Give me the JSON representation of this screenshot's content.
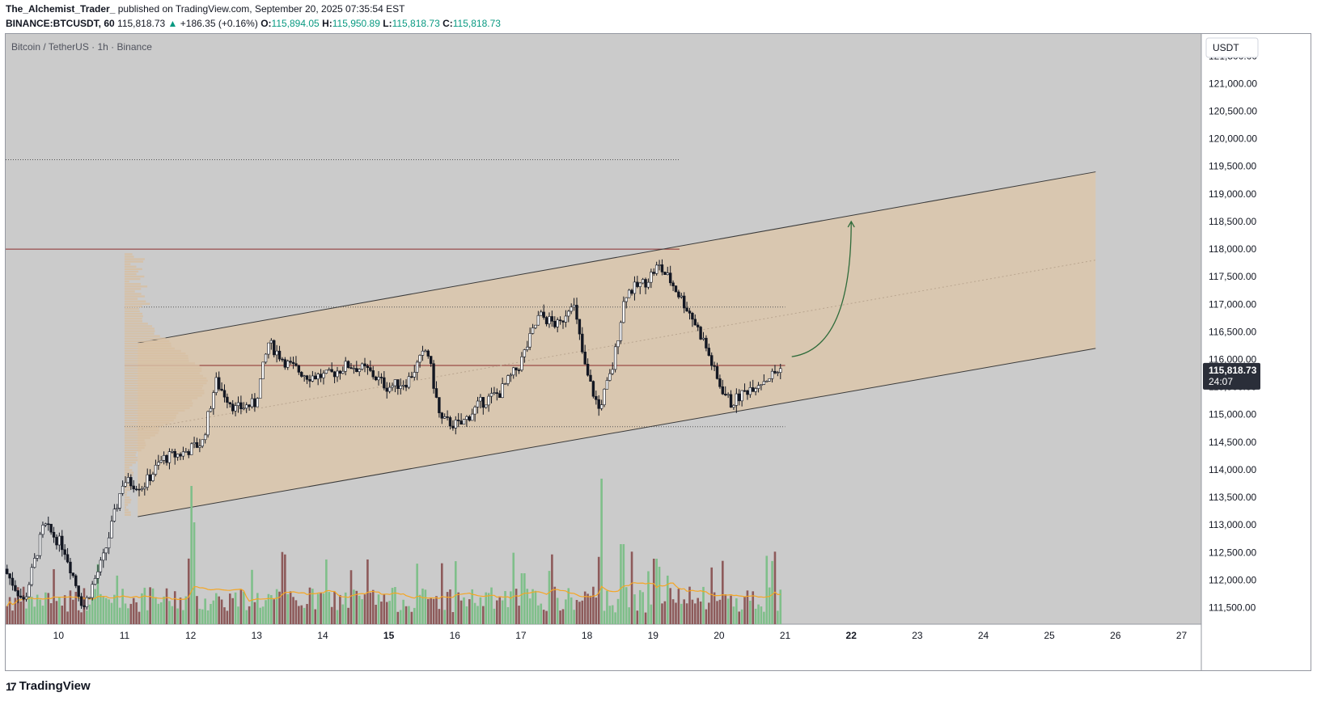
{
  "header": {
    "author": "The_Alchemist_Trader_",
    "published": "published on TradingView.com, September 20, 2025 07:35:54 EST",
    "symbol": "BINANCE:BTCUSDT, 60",
    "last": "115,818.73",
    "arrow": "▲",
    "change": "+186.35 (+0.16%)",
    "o_label": "O:",
    "o_value": "115,894.05",
    "h_label": "H:",
    "h_value": "115,950.89",
    "l_label": "L:",
    "l_value": "115,818.73",
    "c_label": "C:",
    "c_value": "115,818.73"
  },
  "chart_title": "Bitcoin / TetherUS · 1h · Binance",
  "currency_button": "USDT",
  "price_tag": {
    "price": "115,818.73",
    "countdown": "24:07"
  },
  "brand": {
    "logo": "17",
    "name": "TradingView"
  },
  "colors": {
    "up": "#089981",
    "down": "#131722",
    "channel_fill": "#dcc7ab",
    "red_line": "#8b2c2c",
    "arrow": "#2e6b3a",
    "ma": "#f5a623",
    "vol_up": "#7fbf8a",
    "vol_down": "#8d5a5a"
  },
  "chart_data": {
    "type": "candlestick",
    "y_axis": {
      "range": [
        111200,
        121900
      ],
      "ticks": [
        "121,500.00",
        "121,000.00",
        "120,500.00",
        "120,000.00",
        "119,500.00",
        "119,000.00",
        "118,500.00",
        "118,000.00",
        "117,500.00",
        "117,000.00",
        "116,500.00",
        "116,000.00",
        "115,500.00",
        "115,000.00",
        "114,500.00",
        "114,000.00",
        "113,500.00",
        "113,000.00",
        "112,500.00",
        "112,000.00",
        "111,500.00"
      ],
      "tick_values": [
        121500,
        121000,
        120500,
        120000,
        119500,
        119000,
        118500,
        118000,
        117500,
        117000,
        116500,
        116000,
        115500,
        115000,
        114500,
        114000,
        113500,
        113000,
        112500,
        112000,
        111500
      ]
    },
    "x_axis": {
      "ticks": [
        "10",
        "11",
        "12",
        "13",
        "14",
        "15",
        "16",
        "17",
        "18",
        "19",
        "20",
        "21",
        "22",
        "23",
        "24",
        "25",
        "26",
        "27"
      ],
      "bold_ticks": [
        "15",
        "22"
      ],
      "range_days": [
        9.2,
        27.3
      ]
    },
    "price_path": [
      {
        "x": 9.2,
        "y": 112200
      },
      {
        "x": 9.5,
        "y": 111600
      },
      {
        "x": 9.8,
        "y": 113000
      },
      {
        "x": 10.1,
        "y": 112600
      },
      {
        "x": 10.4,
        "y": 111500
      },
      {
        "x": 10.7,
        "y": 112400
      },
      {
        "x": 11.0,
        "y": 113800
      },
      {
        "x": 11.3,
        "y": 113700
      },
      {
        "x": 11.6,
        "y": 114200
      },
      {
        "x": 11.9,
        "y": 114300
      },
      {
        "x": 12.2,
        "y": 114500
      },
      {
        "x": 12.4,
        "y": 115600
      },
      {
        "x": 12.7,
        "y": 115100
      },
      {
        "x": 13.0,
        "y": 115200
      },
      {
        "x": 13.2,
        "y": 116300
      },
      {
        "x": 13.5,
        "y": 115900
      },
      {
        "x": 13.8,
        "y": 115700
      },
      {
        "x": 14.1,
        "y": 115700
      },
      {
        "x": 14.4,
        "y": 115900
      },
      {
        "x": 14.7,
        "y": 115800
      },
      {
        "x": 15.0,
        "y": 115500
      },
      {
        "x": 15.3,
        "y": 115600
      },
      {
        "x": 15.6,
        "y": 116200
      },
      {
        "x": 15.8,
        "y": 114900
      },
      {
        "x": 16.1,
        "y": 114800
      },
      {
        "x": 16.4,
        "y": 115200
      },
      {
        "x": 16.7,
        "y": 115400
      },
      {
        "x": 17.0,
        "y": 115900
      },
      {
        "x": 17.3,
        "y": 116800
      },
      {
        "x": 17.6,
        "y": 116600
      },
      {
        "x": 17.8,
        "y": 117100
      },
      {
        "x": 18.0,
        "y": 115800
      },
      {
        "x": 18.2,
        "y": 115100
      },
      {
        "x": 18.4,
        "y": 115800
      },
      {
        "x": 18.6,
        "y": 117200
      },
      {
        "x": 18.9,
        "y": 117400
      },
      {
        "x": 19.1,
        "y": 117700
      },
      {
        "x": 19.3,
        "y": 117400
      },
      {
        "x": 19.6,
        "y": 116800
      },
      {
        "x": 19.8,
        "y": 116300
      },
      {
        "x": 20.0,
        "y": 115600
      },
      {
        "x": 20.2,
        "y": 115200
      },
      {
        "x": 20.5,
        "y": 115500
      },
      {
        "x": 20.8,
        "y": 115700
      },
      {
        "x": 20.95,
        "y": 115818.73
      }
    ],
    "annotations": {
      "channel": {
        "start": {
          "x": 11.2,
          "upper": 116300,
          "lower": 113150
        },
        "end": {
          "x": 25.7,
          "upper": 119400,
          "lower": 116200
        }
      },
      "horizontal_levels": [
        {
          "price": 118000,
          "style": "solid",
          "from_x": 9.2,
          "to_x": 19.4
        },
        {
          "price": 119620,
          "style": "dotted",
          "from_x": 9.2,
          "to_x": 19.4
        },
        {
          "price": 116950,
          "style": "dotted",
          "from_x": 11.0,
          "to_x": 21.0
        },
        {
          "price": 115890,
          "style": "solid",
          "from_x": 11.0,
          "to_x": 21.0
        },
        {
          "price": 114780,
          "style": "dotted",
          "from_x": 11.0,
          "to_x": 21.0
        }
      ],
      "projection_arrow": {
        "from": {
          "x": 21.1,
          "y": 116050
        },
        "to": {
          "x": 22.0,
          "y": 118500
        }
      }
    },
    "volume_spikes": [
      {
        "x": 12.0,
        "rel": 0.7
      },
      {
        "x": 18.2,
        "rel": 1.0
      },
      {
        "x": 18.5,
        "rel": 0.55
      },
      {
        "x": 17.0,
        "rel": 0.35
      },
      {
        "x": 19.0,
        "rel": 0.45
      }
    ]
  }
}
